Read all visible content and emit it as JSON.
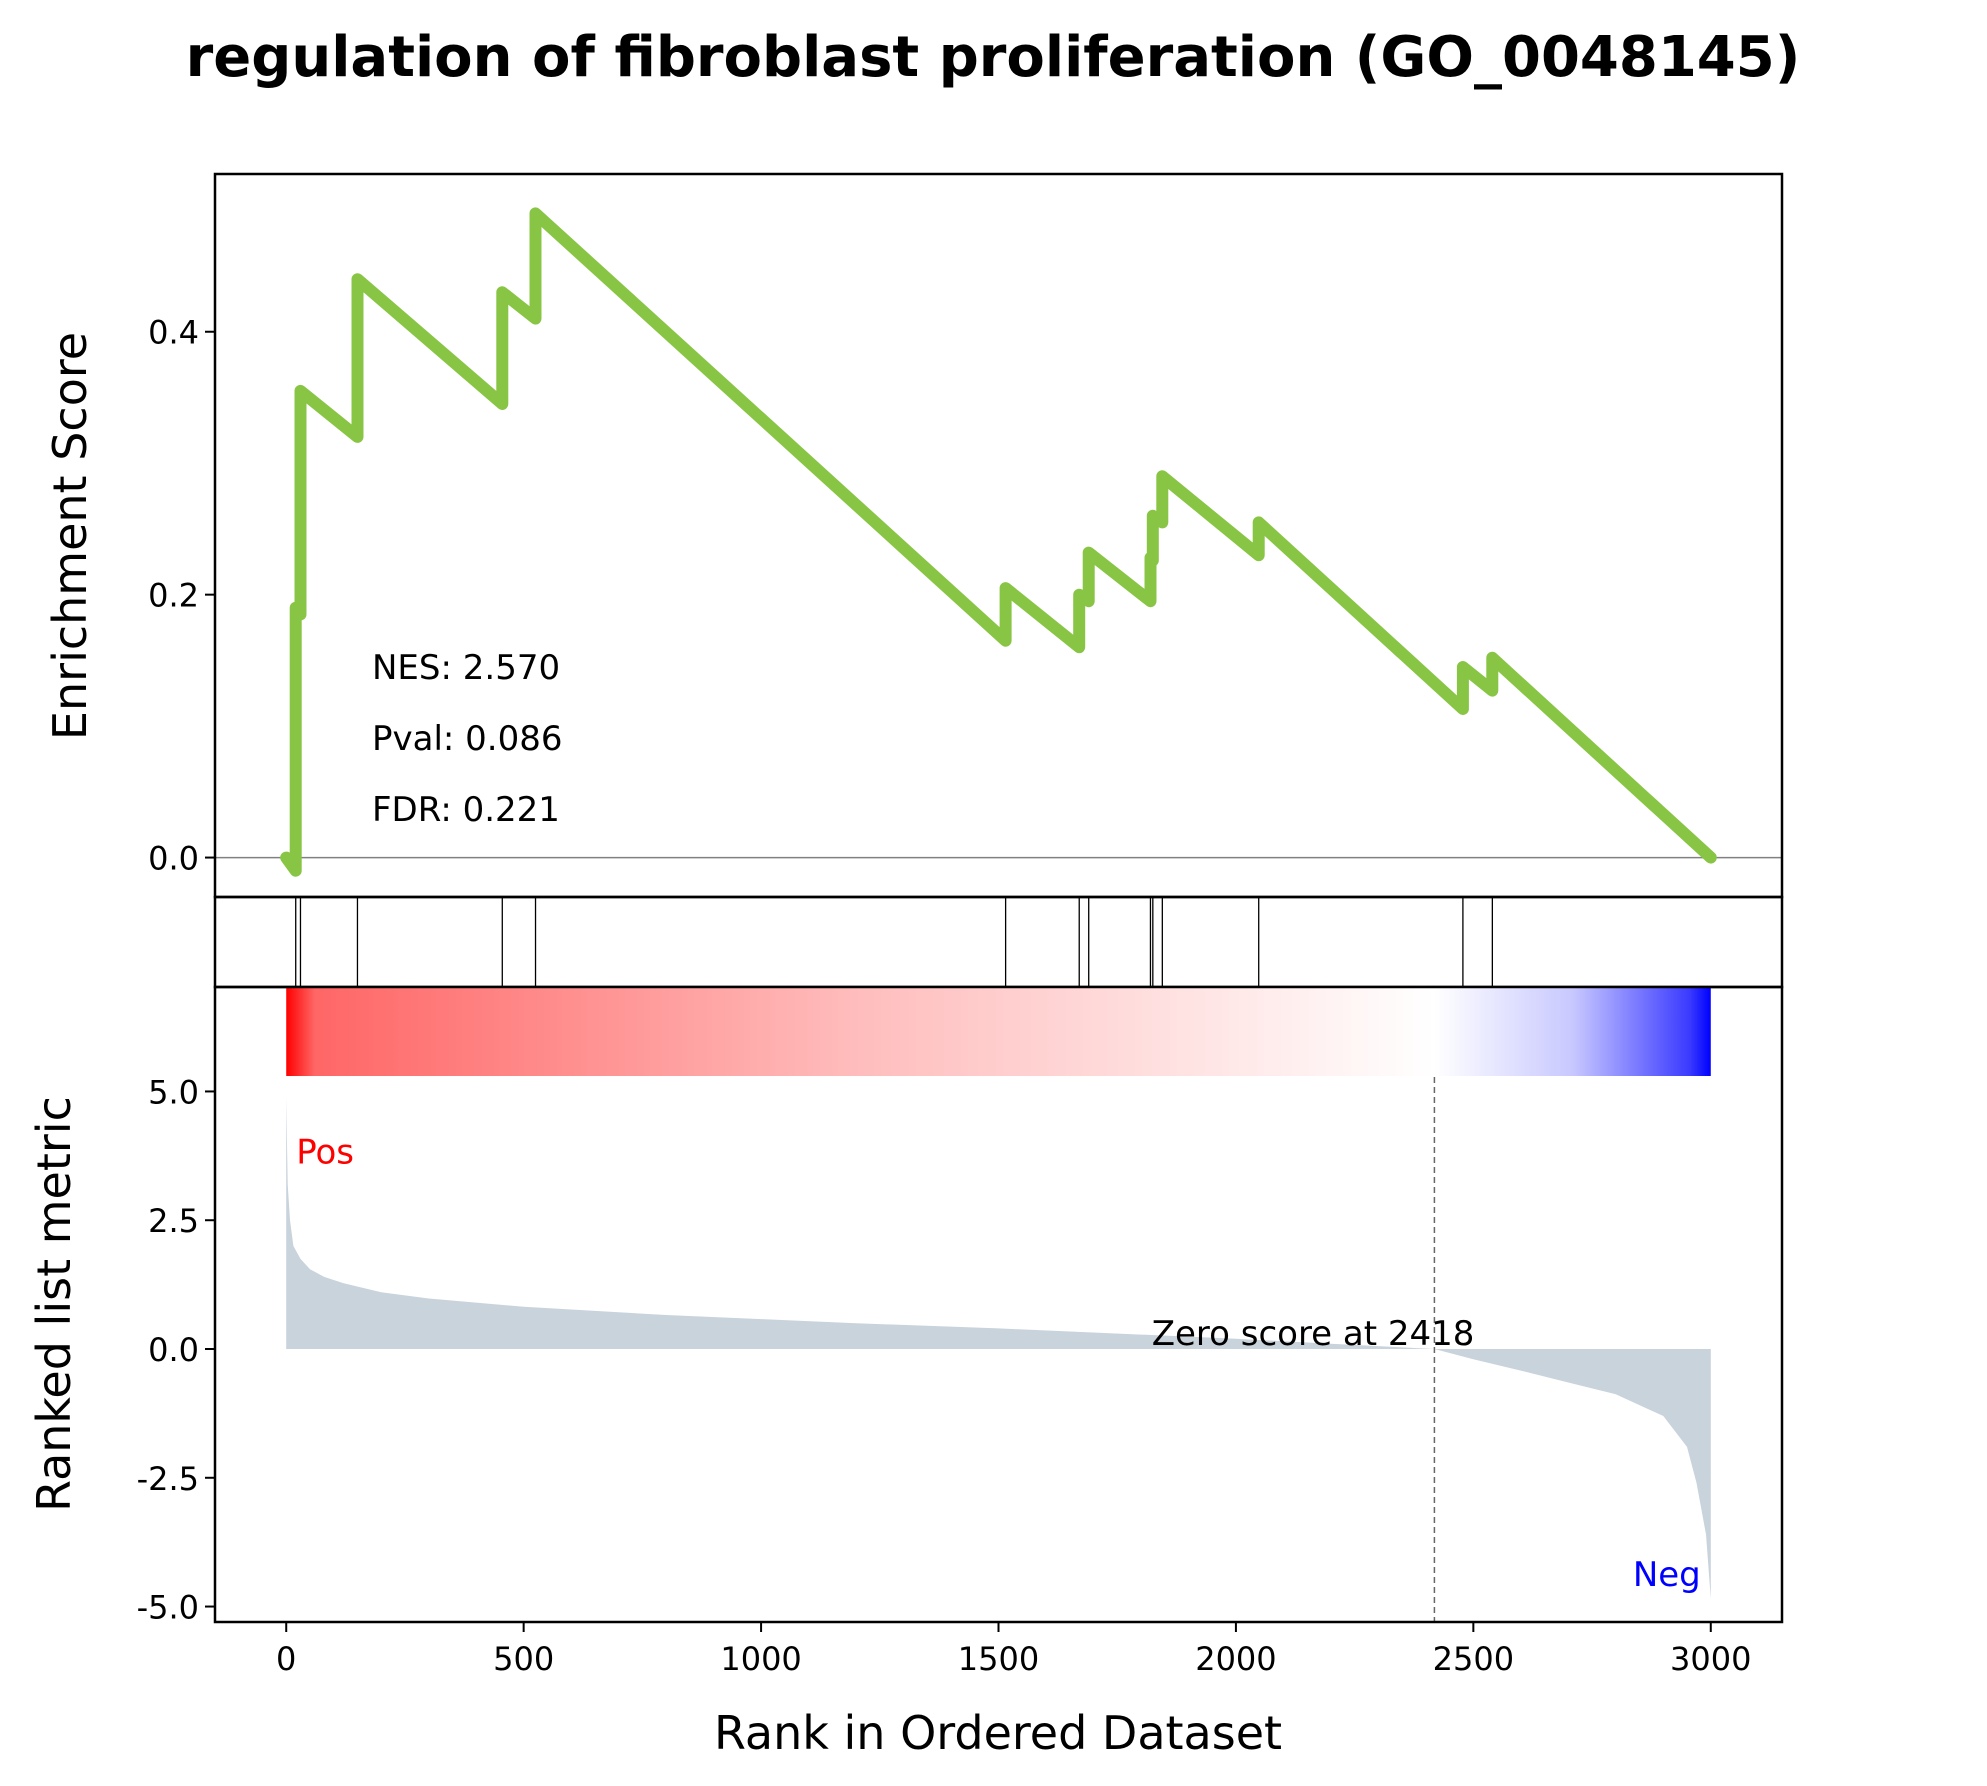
{
  "chart_data": {
    "type": "line",
    "title": "regulation of fibroblast proliferation (GO_0048145)",
    "xlabel": "Rank in Ordered Dataset",
    "xlim": [
      -150,
      3150
    ],
    "x_ticks": [
      0,
      500,
      1000,
      1500,
      2000,
      2500,
      3000
    ],
    "x_tick_labels": [
      "0",
      "500",
      "1000",
      "1500",
      "2000",
      "2500",
      "3000"
    ],
    "enrichment": {
      "ylabel": "Enrichment Score",
      "ylim": [
        -0.03,
        0.52
      ],
      "y_ticks": [
        0.0,
        0.2,
        0.4
      ],
      "y_tick_labels": [
        "0.0",
        "0.2",
        "0.4"
      ],
      "line_color": "#88c544",
      "x": [
        0,
        20,
        20,
        30,
        30,
        150,
        150,
        455,
        455,
        525,
        525,
        1515,
        1515,
        1670,
        1670,
        1690,
        1690,
        1820,
        1820,
        1825,
        1825,
        1845,
        1845,
        2048,
        2048,
        2478,
        2478,
        2540,
        2540,
        3000
      ],
      "y": [
        0,
        -0.01,
        0.19,
        0.185,
        0.355,
        0.32,
        0.44,
        0.345,
        0.43,
        0.41,
        0.49,
        0.165,
        0.205,
        0.16,
        0.2,
        0.195,
        0.232,
        0.195,
        0.228,
        0.226,
        0.26,
        0.255,
        0.29,
        0.23,
        0.255,
        0.113,
        0.145,
        0.127,
        0.152,
        0.0
      ],
      "annotations": [
        "NES: 2.570",
        "Pval: 0.086",
        "FDR: 0.221"
      ]
    },
    "hits": {
      "positions": [
        20,
        30,
        150,
        455,
        525,
        1515,
        1670,
        1690,
        1820,
        1825,
        1845,
        2048,
        2478,
        2540
      ]
    },
    "ranked_metric": {
      "ylabel": "Ranked list metric",
      "ylim": [
        -5.3,
        5.3
      ],
      "y_ticks": [
        5.0,
        2.5,
        0.0,
        -2.5,
        -5.0
      ],
      "y_tick_labels": [
        "5.0",
        "2.5",
        "0.0",
        "-2.5",
        "-5.0"
      ],
      "fill_color": "#c9d3dc",
      "n": 3000,
      "zero_cross": 2418,
      "zero_label": "Zero score at 2418",
      "pos_label": "Pos",
      "neg_label": "Neg",
      "pos_color": "#ff0000",
      "neg_color": "#0000ff",
      "x": [
        0,
        3,
        8,
        15,
        30,
        50,
        80,
        120,
        200,
        300,
        500,
        800,
        1000,
        1200,
        1500,
        1800,
        2000,
        2200,
        2418,
        2500,
        2600,
        2700,
        2800,
        2900,
        2950,
        2970,
        2990,
        3000
      ],
      "y": [
        4.9,
        3.2,
        2.5,
        2.0,
        1.75,
        1.55,
        1.4,
        1.28,
        1.1,
        0.98,
        0.82,
        0.66,
        0.58,
        0.5,
        0.4,
        0.28,
        0.2,
        0.1,
        0.0,
        -0.2,
        -0.42,
        -0.65,
        -0.88,
        -1.3,
        -1.9,
        -2.6,
        -3.6,
        -4.85
      ]
    }
  }
}
